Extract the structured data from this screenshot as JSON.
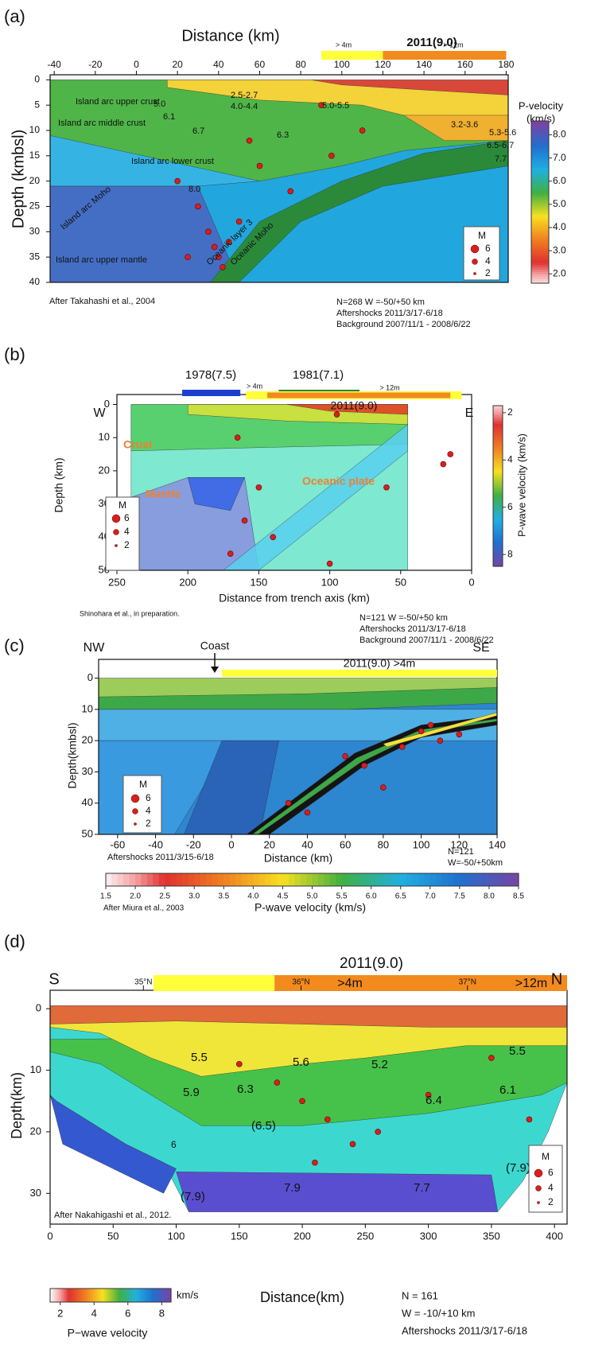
{
  "panels": [
    {
      "label": "(a)",
      "x_axis_label": "Distance (km)",
      "y_axis_label": "Depth (kmbsl)",
      "xlim": [
        -42,
        181
      ],
      "ylim": [
        -1,
        40
      ],
      "xticks": [
        -40,
        -20,
        0,
        20,
        40,
        60,
        80,
        100,
        120,
        140,
        160,
        180
      ],
      "yticks": [
        0,
        5,
        10,
        15,
        20,
        25,
        30,
        35,
        40
      ],
      "event_title": "2011(9.0)",
      "slip": [
        {
          "label": "> 4m",
          "from": 90,
          "to": 120,
          "color": "#ffff3a"
        },
        {
          "label": "> 12m",
          "from": 120,
          "to": 180,
          "color": "#f28a1e"
        }
      ],
      "annotations": [
        "Island arc upper crust",
        "5.0",
        "2.5-2.7",
        "4.0-4.4",
        "5.0-5.5",
        "Island arc middle crust",
        "6.1",
        "6.7",
        "6.3",
        "3.2-3.6",
        "5.3-5.6",
        "6.5-6.7",
        "7.7",
        "Island arc lower crust",
        "8.0",
        "Island arc Moho",
        "Island arc upper mantle",
        "Oceanic layer 3",
        "Oceanic Moho"
      ],
      "legend": {
        "title": "M",
        "items": [
          "6",
          "4",
          "2"
        ]
      },
      "colorbar": {
        "title": [
          "P-velocity",
          "(km/s)"
        ],
        "lim": [
          1.6,
          8.6
        ],
        "ticks": [
          {
            "value": 2,
            "label": "2.0"
          },
          {
            "value": 3,
            "label": "3.0"
          },
          {
            "value": 4,
            "label": "4.0"
          },
          {
            "value": 5,
            "label": "5.0"
          },
          {
            "value": 6,
            "label": "6.0"
          },
          {
            "value": 7,
            "label": "7.0"
          },
          {
            "value": 8,
            "label": "8.0"
          }
        ]
      },
      "credit": "After Takahashi et al., 2004",
      "notes": [
        "N=268   W =-50/+50 km",
        "Aftershocks 2011/3/17-6/18",
        "Background 2007/11/1 - 2008/6/22"
      ],
      "events": {
        "x": [
          30,
          35,
          38,
          40,
          42,
          45,
          50,
          25,
          60,
          75,
          95,
          110,
          90,
          20,
          55
        ],
        "y": [
          25,
          30,
          33,
          35,
          37,
          32,
          28,
          35,
          17,
          22,
          15,
          10,
          5,
          20,
          12
        ]
      }
    },
    {
      "label": "(b)",
      "x_axis_label": "Distance from trench axis (km)",
      "y_axis_label": "Depth (km)",
      "xlim": [
        250,
        0
      ],
      "ylim": [
        -3,
        50
      ],
      "xticks": [
        250,
        200,
        150,
        100,
        50,
        0
      ],
      "yticks": [
        0,
        10,
        20,
        30,
        40,
        50
      ],
      "side_labels": [
        "W",
        "E"
      ],
      "event_title": "2011(9.0)",
      "historic": [
        {
          "label": "1978(7.5)",
          "from": 204,
          "to": 163,
          "color": "#1a3fd0"
        },
        {
          "label": "1981(7.1)",
          "from": 136,
          "to": 79,
          "color": "#2a8040"
        }
      ],
      "slip": [
        {
          "label": "> 4m",
          "from": 159,
          "to": 7,
          "color": "#ffff3a"
        },
        {
          "label": "> 12m",
          "from": 144,
          "to": 15,
          "color": "#f28a1e"
        }
      ],
      "annotations": [
        "Crust",
        "Mantle",
        "Oceanic plate"
      ],
      "legend": {
        "title": "M",
        "items": [
          "6",
          "4",
          "2"
        ]
      },
      "colorbar": {
        "title": [
          "P-wave velocity (km/s)"
        ],
        "lim": [
          1.7,
          8.5
        ],
        "ticks": [
          2,
          4,
          6,
          8
        ]
      },
      "credit": "Shinohara et al., in preparation.",
      "notes": [
        "N=121    W =-50/+50 km",
        "Aftershocks 2011/3/17-6/18",
        "Background 2007/11/1 -  2008/6/22"
      ],
      "events": {
        "x": [
          160,
          150,
          140,
          170,
          165,
          95,
          60,
          20,
          15,
          100
        ],
        "y": [
          35,
          25,
          40,
          45,
          10,
          3,
          25,
          18,
          15,
          48
        ]
      }
    },
    {
      "label": "(c)",
      "x_axis_label": "Distance (km)",
      "y_axis_label": "Depth(kmbsl)",
      "xlim": [
        -70,
        140
      ],
      "ylim": [
        -6,
        50
      ],
      "xticks": [
        -60,
        -40,
        -20,
        0,
        20,
        40,
        60,
        80,
        100,
        120,
        140
      ],
      "yticks": [
        0,
        10,
        20,
        30,
        40,
        50
      ],
      "side_labels": [
        "NW",
        "SE"
      ],
      "slip": [
        {
          "label": "2011(9.0) >4m",
          "from": -5,
          "to": 140,
          "color": "#ffff3a"
        }
      ],
      "annotations": [
        "Coast"
      ],
      "legend": {
        "title": "M",
        "items": [
          "6",
          "4",
          "2"
        ]
      },
      "colorbar": {
        "title": [
          "P-wave velocity (km/s)"
        ],
        "lim": [
          1.5,
          8.5
        ],
        "ticks": [
          1.5,
          {
            "value": 2,
            "label": "2.0"
          },
          2.5,
          {
            "value": 3,
            "label": "3.0"
          },
          3.5,
          {
            "value": 4,
            "label": "4.0"
          },
          4.5,
          {
            "value": 5,
            "label": "5.0"
          },
          5.5,
          {
            "value": 6,
            "label": "6.0"
          },
          6.5,
          {
            "value": 7,
            "label": "7.0"
          },
          7.5,
          {
            "value": 8,
            "label": "8.0"
          },
          8.5
        ]
      },
      "credit": "After Miura et al., 2003",
      "notes": [
        "Aftershocks 2011/3/15-6/18",
        "N=121",
        "W=-50/+50km"
      ],
      "events": {
        "x": [
          60,
          70,
          80,
          100,
          110,
          105,
          90,
          30,
          40,
          120
        ],
        "y": [
          25,
          28,
          35,
          17,
          20,
          15,
          22,
          40,
          43,
          18
        ]
      }
    },
    {
      "label": "(d)",
      "x_axis_label": "Distance(km)",
      "y_axis_label": "Depth(km)",
      "xlim": [
        0,
        410
      ],
      "ylim": [
        -3,
        35
      ],
      "xticks": [
        0,
        50,
        100,
        150,
        200,
        250,
        300,
        350,
        400
      ],
      "yticks": [
        0,
        10,
        20,
        30
      ],
      "side_labels": [
        "S",
        "N"
      ],
      "event_title": "2011(9.0)",
      "slip": [
        {
          "label": ">4m",
          "from": 82,
          "to": 178,
          "color": "#ffff3a"
        },
        {
          "label": ">12m",
          "from": 178,
          "to": 410,
          "color": "#f28a1e"
        }
      ],
      "lat_ticks": [
        {
          "value": 74,
          "label": "35°N"
        },
        {
          "value": 199,
          "label": "36°N"
        },
        {
          "value": 331,
          "label": "37°N"
        }
      ],
      "annotations": [
        "5.5",
        "5.6",
        "5.2",
        "5.5",
        "5.9",
        "6.3",
        "6.4",
        "6.1",
        "(6.5)",
        "6",
        "(7.9)",
        "7.9",
        "7.7",
        "(7.9)"
      ],
      "legend": {
        "title": "M",
        "items": [
          "6",
          "4",
          "2"
        ]
      },
      "colorbar": {
        "title": [
          "km/s",
          "P−wave velocity"
        ],
        "lim": [
          1.4,
          8.55
        ],
        "ticks": [
          2,
          4,
          6,
          8
        ]
      },
      "credit": "After Nakahigashi et al., 2012.",
      "notes": [
        "N = 161",
        "W = -10/+10 km",
        "Aftershocks 2011/3/17-6/18"
      ],
      "events": {
        "x": [
          200,
          220,
          240,
          180,
          300,
          350,
          210,
          260,
          380,
          150
        ],
        "y": [
          15,
          18,
          22,
          12,
          14,
          8,
          25,
          20,
          18,
          9
        ]
      }
    }
  ]
}
